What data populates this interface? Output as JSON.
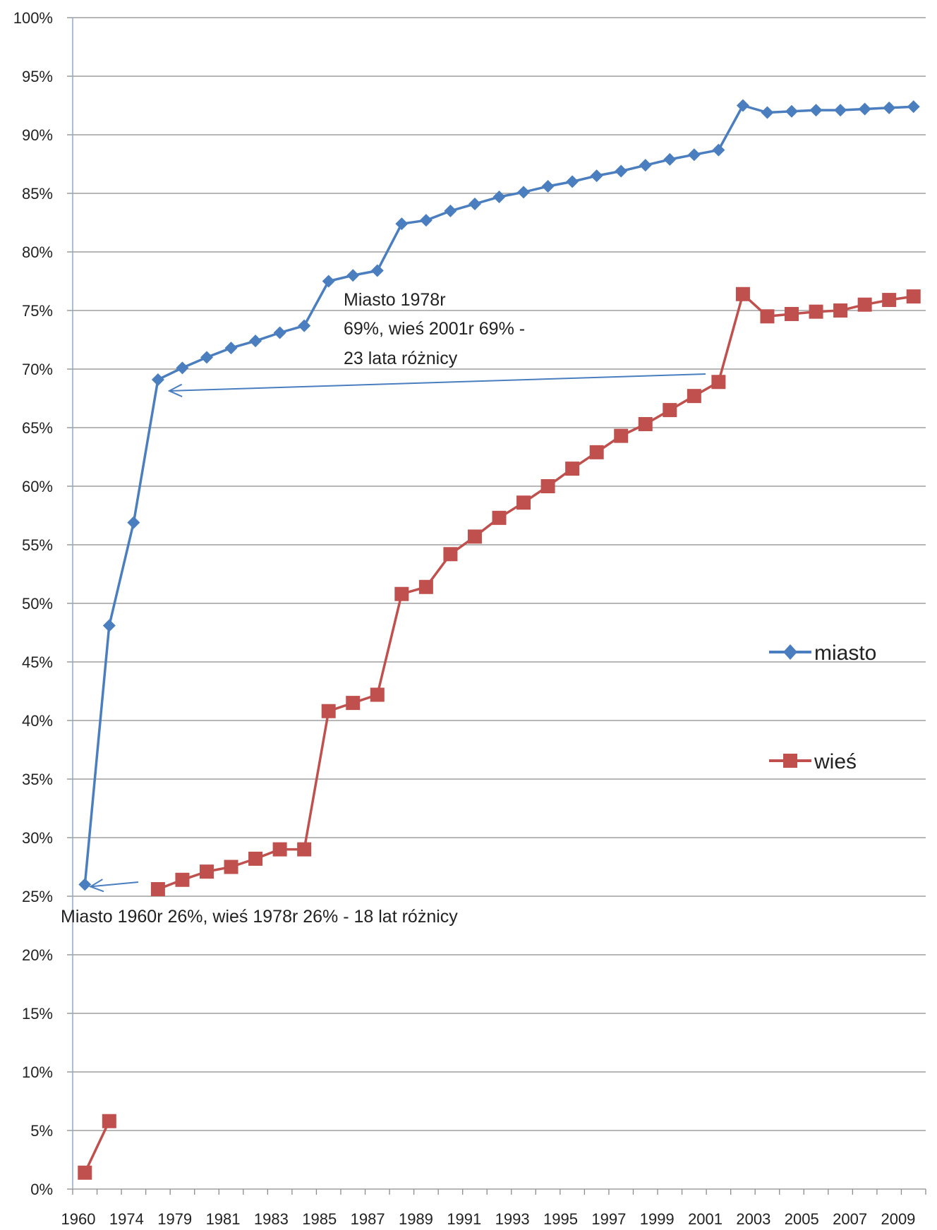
{
  "chart_data": {
    "type": "line",
    "title": "",
    "xlabel": "",
    "ylabel": "",
    "ylim": [
      0,
      1
    ],
    "y_ticks": [
      "0%",
      "5%",
      "10%",
      "15%",
      "20%",
      "25%",
      "30%",
      "35%",
      "40%",
      "45%",
      "50%",
      "55%",
      "60%",
      "65%",
      "70%",
      "75%",
      "80%",
      "85%",
      "90%",
      "95%",
      "100%"
    ],
    "x_tick_labels": [
      "1960",
      "1974",
      "1979",
      "1981",
      "1983",
      "1985",
      "1987",
      "1989",
      "1991",
      "1993",
      "1995",
      "1997",
      "1999",
      "2001",
      "2003",
      "2005",
      "2007",
      "2009"
    ],
    "grid": "horizontal",
    "legend_position": "right",
    "series": [
      {
        "name": "miasto",
        "color": "#4a7ebf",
        "marker": "diamond",
        "values": [
          0.26,
          0.481,
          0.569,
          0.691,
          0.701,
          0.71,
          0.718,
          0.724,
          0.731,
          0.737,
          0.775,
          0.78,
          0.784,
          0.824,
          0.827,
          0.835,
          0.841,
          0.847,
          0.851,
          0.856,
          0.86,
          0.865,
          0.869,
          0.874,
          0.879,
          0.883,
          0.887,
          0.925,
          0.919,
          0.92,
          0.921,
          0.921,
          0.922,
          0.923,
          0.924
        ]
      },
      {
        "name": "wieś",
        "color": "#c0504d",
        "marker": "square",
        "values": [
          0.014,
          0.058,
          null,
          0.256,
          0.264,
          0.271,
          0.275,
          0.282,
          0.29,
          0.29,
          0.408,
          0.415,
          0.422,
          0.508,
          0.514,
          0.542,
          0.557,
          0.573,
          0.586,
          0.6,
          0.615,
          0.629,
          0.643,
          0.653,
          0.665,
          0.677,
          0.689,
          0.764,
          0.745,
          0.747,
          0.749,
          0.75,
          0.755,
          0.759,
          0.762
        ]
      }
    ],
    "annotations": [
      {
        "lines": [
          "Miasto 1978r",
          "69%, wieś 2001r 69% -",
          "23 lata różnicy"
        ]
      },
      {
        "lines": [
          "Miasto 1960r 26%, wieś 1978r 26% - 18 lat różnicy"
        ]
      }
    ]
  }
}
